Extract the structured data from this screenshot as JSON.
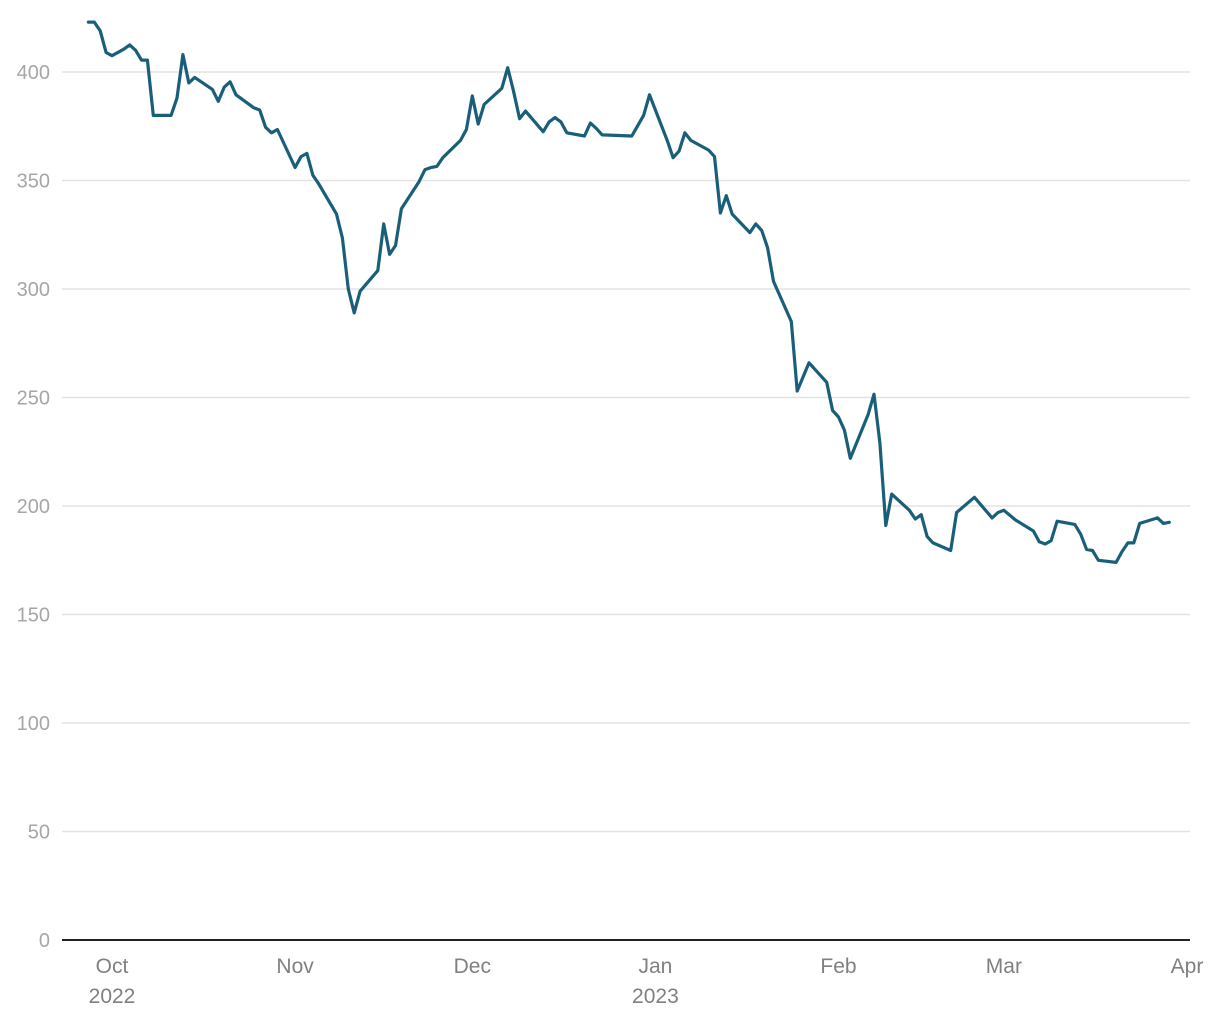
{
  "chart_data": {
    "type": "line",
    "title": "",
    "xlabel": "",
    "ylabel": "",
    "ylim": [
      0,
      400
    ],
    "yticks": [
      0,
      50,
      100,
      150,
      200,
      250,
      300,
      350,
      400
    ],
    "xlim": [
      "2022-09-25",
      "2023-04-02"
    ],
    "xticks": [
      {
        "date": "2022-10-01",
        "label": "Oct",
        "sublabel": "2022"
      },
      {
        "date": "2022-11-01",
        "label": "Nov",
        "sublabel": ""
      },
      {
        "date": "2022-12-01",
        "label": "Dec",
        "sublabel": ""
      },
      {
        "date": "2023-01-01",
        "label": "Jan",
        "sublabel": "2023"
      },
      {
        "date": "2023-02-01",
        "label": "Feb",
        "sublabel": ""
      },
      {
        "date": "2023-03-01",
        "label": "Mar",
        "sublabel": ""
      },
      {
        "date": "2023-04-01",
        "label": "Apr",
        "sublabel": ""
      }
    ],
    "grid": true,
    "color": "#1a5f7a",
    "series": [
      {
        "name": "",
        "points": [
          [
            "2022-09-27",
            423
          ],
          [
            "2022-09-28",
            423
          ],
          [
            "2022-09-29",
            419
          ],
          [
            "2022-09-30",
            409
          ],
          [
            "2022-10-01",
            407.5
          ],
          [
            "2022-10-03",
            410.5
          ],
          [
            "2022-10-04",
            412.5
          ],
          [
            "2022-10-05",
            410
          ],
          [
            "2022-10-06",
            405.5
          ],
          [
            "2022-10-07",
            405.5
          ],
          [
            "2022-10-08",
            380
          ],
          [
            "2022-10-11",
            380
          ],
          [
            "2022-10-12",
            388
          ],
          [
            "2022-10-13",
            408
          ],
          [
            "2022-10-14",
            395
          ],
          [
            "2022-10-15",
            397.5
          ],
          [
            "2022-10-18",
            392
          ],
          [
            "2022-10-19",
            386.5
          ],
          [
            "2022-10-20",
            393
          ],
          [
            "2022-10-21",
            395.5
          ],
          [
            "2022-10-22",
            389.5
          ],
          [
            "2022-10-25",
            383.5
          ],
          [
            "2022-10-26",
            382.5
          ],
          [
            "2022-10-27",
            374.5
          ],
          [
            "2022-10-28",
            372
          ],
          [
            "2022-10-29",
            373.5
          ],
          [
            "2022-11-01",
            356
          ],
          [
            "2022-11-02",
            361
          ],
          [
            "2022-11-03",
            362.5
          ],
          [
            "2022-11-04",
            352.5
          ],
          [
            "2022-11-05",
            348.5
          ],
          [
            "2022-11-08",
            334.5
          ],
          [
            "2022-11-09",
            323.5
          ],
          [
            "2022-11-10",
            300
          ],
          [
            "2022-11-11",
            289
          ],
          [
            "2022-11-12",
            299
          ],
          [
            "2022-11-15",
            308.5
          ],
          [
            "2022-11-16",
            330
          ],
          [
            "2022-11-17",
            316
          ],
          [
            "2022-11-18",
            320
          ],
          [
            "2022-11-19",
            337
          ],
          [
            "2022-11-22",
            349.5
          ],
          [
            "2022-11-23",
            355
          ],
          [
            "2022-11-24",
            356
          ],
          [
            "2022-11-25",
            356.5
          ],
          [
            "2022-11-26",
            360.5
          ],
          [
            "2022-11-29",
            368.5
          ],
          [
            "2022-11-30",
            373.5
          ],
          [
            "2022-12-01",
            389
          ],
          [
            "2022-12-02",
            376
          ],
          [
            "2022-12-03",
            385
          ],
          [
            "2022-12-06",
            392.5
          ],
          [
            "2022-12-07",
            402
          ],
          [
            "2022-12-08",
            391
          ],
          [
            "2022-12-09",
            378.5
          ],
          [
            "2022-12-10",
            382
          ],
          [
            "2022-12-13",
            372.5
          ],
          [
            "2022-12-14",
            377
          ],
          [
            "2022-12-15",
            379
          ],
          [
            "2022-12-16",
            377
          ],
          [
            "2022-12-17",
            372
          ],
          [
            "2022-12-20",
            370.5
          ],
          [
            "2022-12-21",
            376.5
          ],
          [
            "2022-12-22",
            374
          ],
          [
            "2022-12-23",
            371
          ],
          [
            "2022-12-28",
            370.5
          ],
          [
            "2022-12-30",
            380
          ],
          [
            "2022-12-31",
            389.5
          ],
          [
            "2023-01-03",
            368.5
          ],
          [
            "2023-01-04",
            360.5
          ],
          [
            "2023-01-05",
            363.5
          ],
          [
            "2023-01-06",
            372
          ],
          [
            "2023-01-07",
            368.5
          ],
          [
            "2023-01-10",
            364
          ],
          [
            "2023-01-11",
            361
          ],
          [
            "2023-01-12",
            335
          ],
          [
            "2023-01-13",
            343
          ],
          [
            "2023-01-14",
            334.5
          ],
          [
            "2023-01-17",
            326
          ],
          [
            "2023-01-18",
            330
          ],
          [
            "2023-01-19",
            327
          ],
          [
            "2023-01-20",
            319
          ],
          [
            "2023-01-21",
            303.5
          ],
          [
            "2023-01-24",
            285
          ],
          [
            "2023-01-25",
            253
          ],
          [
            "2023-01-27",
            266
          ],
          [
            "2023-01-28",
            263
          ],
          [
            "2023-01-30",
            257
          ],
          [
            "2023-01-31",
            244
          ],
          [
            "2023-02-01",
            241
          ],
          [
            "2023-02-02",
            235
          ],
          [
            "2023-02-03",
            222
          ],
          [
            "2023-02-06",
            242
          ],
          [
            "2023-02-07",
            251.5
          ],
          [
            "2023-02-08",
            229
          ],
          [
            "2023-02-09",
            191
          ],
          [
            "2023-02-10",
            205.5
          ],
          [
            "2023-02-13",
            198
          ],
          [
            "2023-02-14",
            194
          ],
          [
            "2023-02-15",
            196
          ],
          [
            "2023-02-16",
            186
          ],
          [
            "2023-02-17",
            183
          ],
          [
            "2023-02-20",
            179.5
          ],
          [
            "2023-02-21",
            197
          ],
          [
            "2023-02-24",
            204
          ],
          [
            "2023-02-27",
            194.5
          ],
          [
            "2023-02-28",
            197
          ],
          [
            "2023-03-01",
            198
          ],
          [
            "2023-03-03",
            193.5
          ],
          [
            "2023-03-06",
            188.5
          ],
          [
            "2023-03-07",
            183.5
          ],
          [
            "2023-03-08",
            182.5
          ],
          [
            "2023-03-09",
            184
          ],
          [
            "2023-03-10",
            193
          ],
          [
            "2023-03-13",
            191.5
          ],
          [
            "2023-03-14",
            187
          ],
          [
            "2023-03-15",
            180
          ],
          [
            "2023-03-16",
            179.5
          ],
          [
            "2023-03-17",
            175
          ],
          [
            "2023-03-20",
            174
          ],
          [
            "2023-03-21",
            179
          ],
          [
            "2023-03-22",
            183
          ],
          [
            "2023-03-23",
            183
          ],
          [
            "2023-03-24",
            192
          ],
          [
            "2023-03-27",
            194.5
          ],
          [
            "2023-03-28",
            192
          ],
          [
            "2023-03-29",
            192.5
          ]
        ]
      }
    ]
  }
}
